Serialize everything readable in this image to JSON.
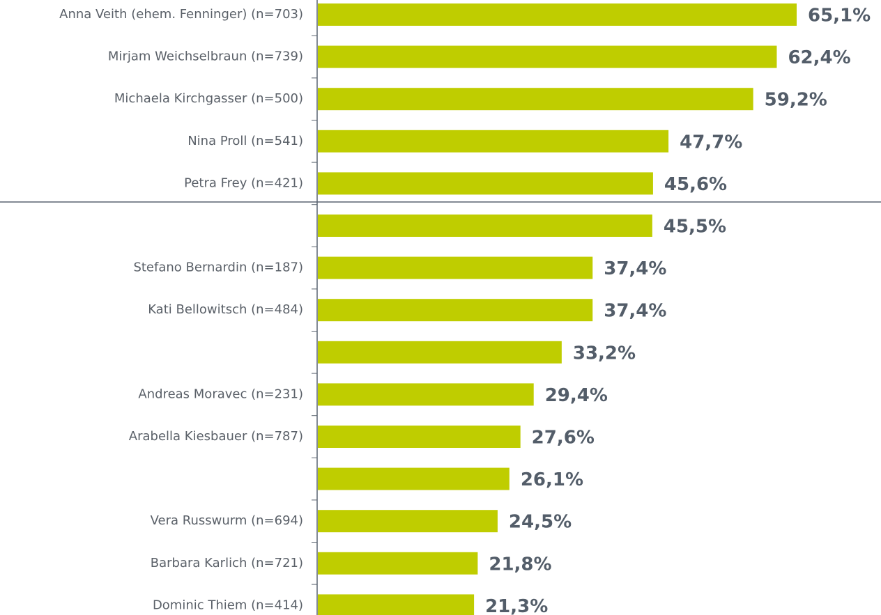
{
  "chart_data": {
    "type": "barh",
    "categories": [
      "Anna Veith (ehem. Fenninger) (n=703)",
      "Mirjam Weichselbraun (n=739)",
      "Michaela Kirchgasser (n=500)",
      "Nina Proll (n=541)",
      "Petra Frey (n=421)",
      null,
      "Stefano Bernardin (n=187)",
      "Kati Bellowitsch (n=484)",
      null,
      "Andreas Moravec (n=231)",
      "Arabella Kiesbauer (n=787)",
      null,
      "Vera Russwurm (n=694)",
      "Barbara Karlich (n=721)",
      "Dominic Thiem (n=414)"
    ],
    "values": [
      65.1,
      62.4,
      59.2,
      47.7,
      45.6,
      45.5,
      37.4,
      37.4,
      33.2,
      29.4,
      27.6,
      26.1,
      24.5,
      21.8,
      21.3
    ],
    "value_labels": [
      "65,1%",
      "62,4%",
      "59,2%",
      "47,7%",
      "45,6%",
      "45,5%",
      "37,4%",
      "37,4%",
      "33,2%",
      "29,4%",
      "27,6%",
      "26,1%",
      "24,5%",
      "21,8%",
      "21,3%"
    ],
    "color": "#bfcd00"
  }
}
